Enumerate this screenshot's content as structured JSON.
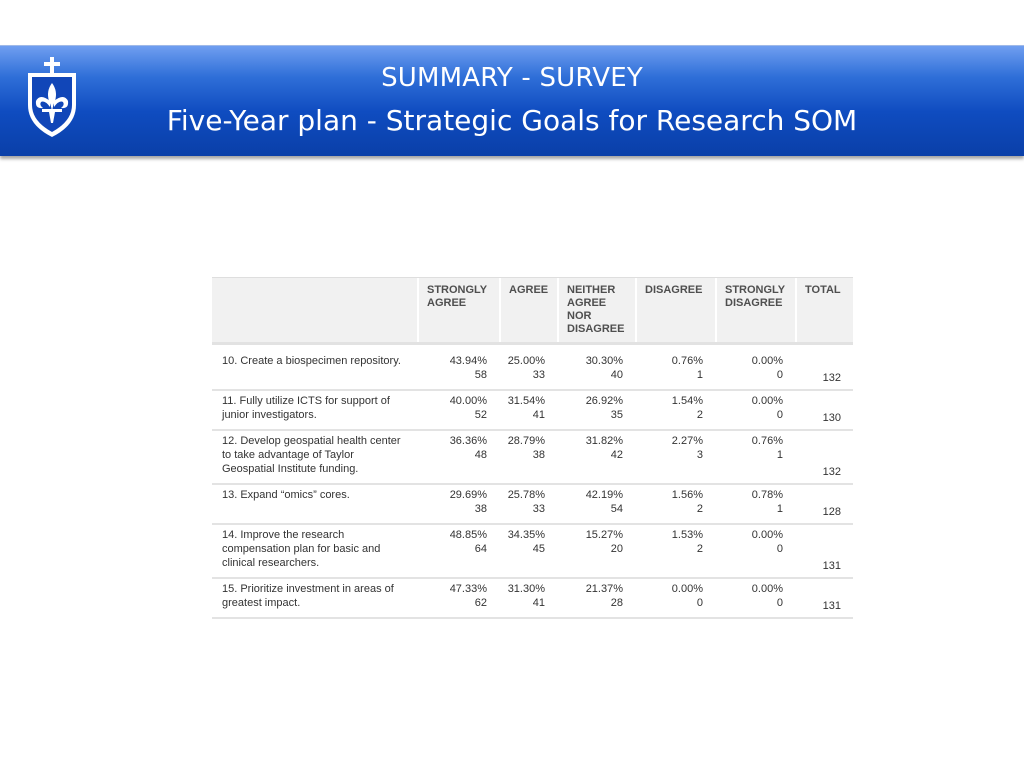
{
  "header": {
    "title_line1": "SUMMARY - SURVEY",
    "title_line2": "Five-Year plan - Strategic Goals for Research SOM",
    "logo_icon": "fleur-de-lis-shield-icon",
    "colors": {
      "banner_top": "#6f9ef0",
      "banner_bottom": "#0a3fa8",
      "title_text": "#ffffff"
    }
  },
  "table": {
    "columns": [
      {
        "line1": "STRONGLY",
        "line2": "AGREE",
        "line3": "",
        "line4": ""
      },
      {
        "line1": "AGREE",
        "line2": "",
        "line3": "",
        "line4": ""
      },
      {
        "line1": "NEITHER",
        "line2": "AGREE",
        "line3": "NOR",
        "line4": "DISAGREE"
      },
      {
        "line1": "DISAGREE",
        "line2": "",
        "line3": "",
        "line4": ""
      },
      {
        "line1": "STRONGLY",
        "line2": "DISAGREE",
        "line3": "",
        "line4": ""
      },
      {
        "line1": "TOTAL",
        "line2": "",
        "line3": "",
        "line4": ""
      }
    ],
    "rows": [
      {
        "question": "10. Create a biospecimen repository.",
        "cells": [
          {
            "pct": "43.94%",
            "count": "58"
          },
          {
            "pct": "25.00%",
            "count": "33"
          },
          {
            "pct": "30.30%",
            "count": "40"
          },
          {
            "pct": "0.76%",
            "count": "1"
          },
          {
            "pct": "0.00%",
            "count": "0"
          }
        ],
        "total": "132"
      },
      {
        "question": "11. Fully utilize ICTS for support of junior investigators.",
        "cells": [
          {
            "pct": "40.00%",
            "count": "52"
          },
          {
            "pct": "31.54%",
            "count": "41"
          },
          {
            "pct": "26.92%",
            "count": "35"
          },
          {
            "pct": "1.54%",
            "count": "2"
          },
          {
            "pct": "0.00%",
            "count": "0"
          }
        ],
        "total": "130"
      },
      {
        "question": "12. Develop geospatial health center to take advantage of Taylor Geospatial Institute funding.",
        "cells": [
          {
            "pct": "36.36%",
            "count": "48"
          },
          {
            "pct": "28.79%",
            "count": "38"
          },
          {
            "pct": "31.82%",
            "count": "42"
          },
          {
            "pct": "2.27%",
            "count": "3"
          },
          {
            "pct": "0.76%",
            "count": "1"
          }
        ],
        "total": "132"
      },
      {
        "question": "13. Expand “omics” cores.",
        "cells": [
          {
            "pct": "29.69%",
            "count": "38"
          },
          {
            "pct": "25.78%",
            "count": "33"
          },
          {
            "pct": "42.19%",
            "count": "54"
          },
          {
            "pct": "1.56%",
            "count": "2"
          },
          {
            "pct": "0.78%",
            "count": "1"
          }
        ],
        "total": "128"
      },
      {
        "question": "14. Improve the research compensation plan for basic and clinical researchers.",
        "cells": [
          {
            "pct": "48.85%",
            "count": "64"
          },
          {
            "pct": "34.35%",
            "count": "45"
          },
          {
            "pct": "15.27%",
            "count": "20"
          },
          {
            "pct": "1.53%",
            "count": "2"
          },
          {
            "pct": "0.00%",
            "count": "0"
          }
        ],
        "total": "131"
      },
      {
        "question": "15. Prioritize investment in areas of greatest impact.",
        "cells": [
          {
            "pct": "47.33%",
            "count": "62"
          },
          {
            "pct": "31.30%",
            "count": "41"
          },
          {
            "pct": "21.37%",
            "count": "28"
          },
          {
            "pct": "0.00%",
            "count": "0"
          },
          {
            "pct": "0.00%",
            "count": "0"
          }
        ],
        "total": "131"
      }
    ]
  }
}
